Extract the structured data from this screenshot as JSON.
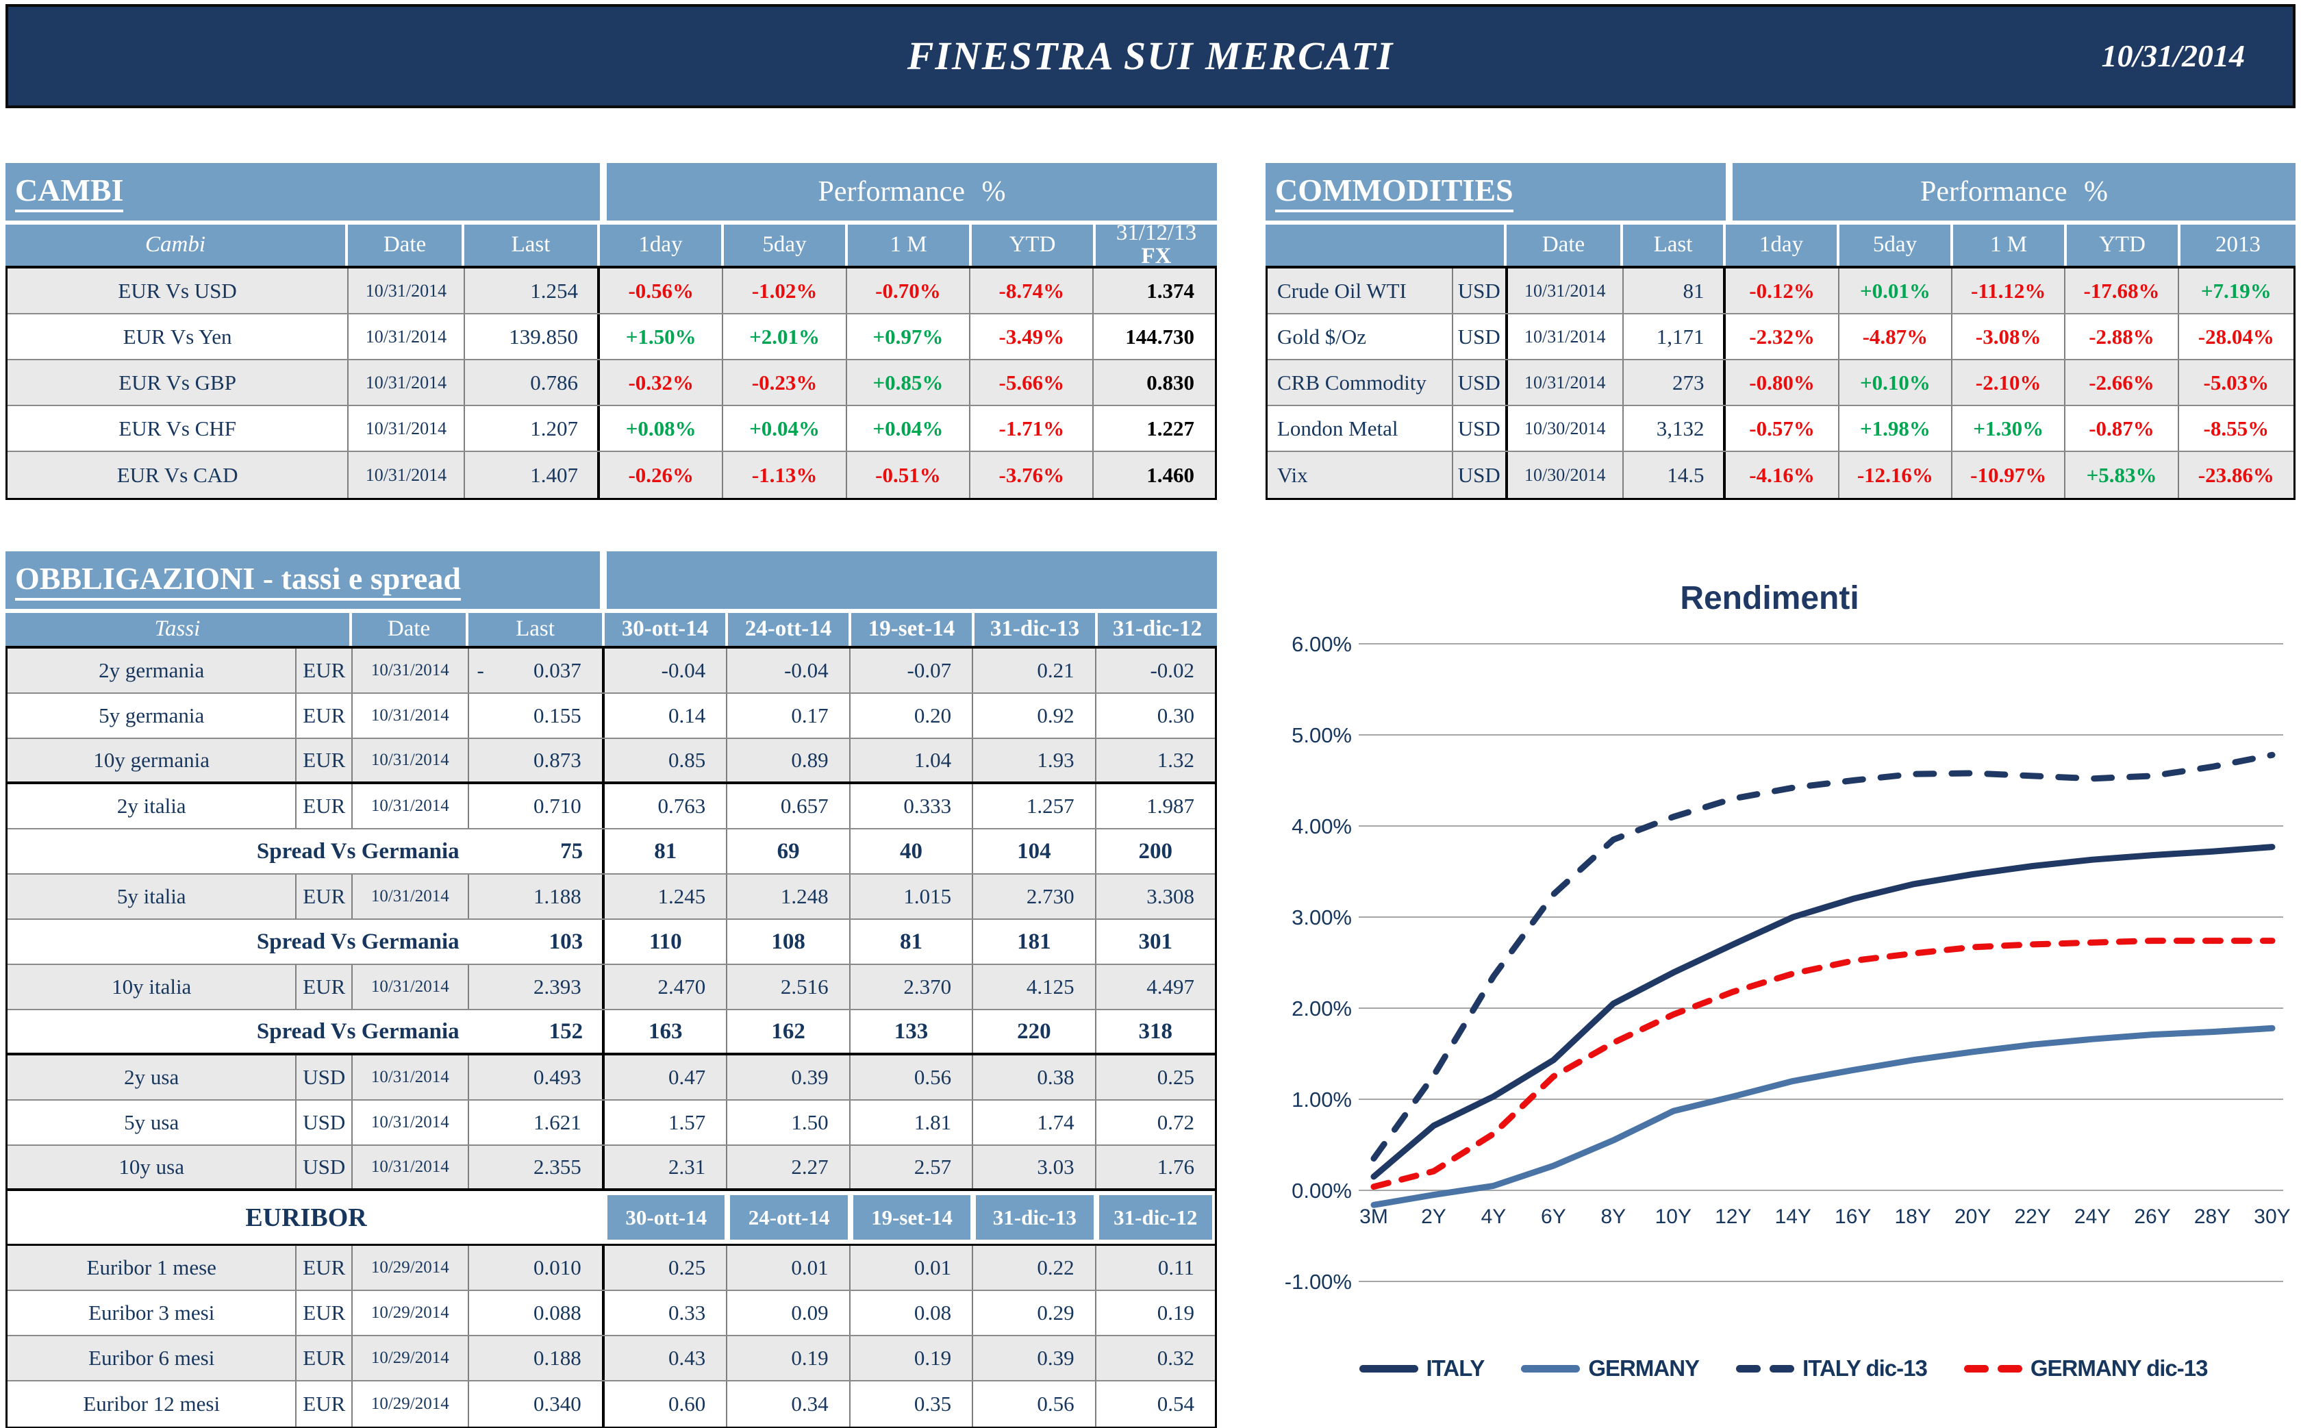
{
  "header": {
    "title": "FINESTRA SUI MERCATI",
    "date": "10/31/2014"
  },
  "palette": {
    "banner_navy": "#1e3a62",
    "table_header_blue": "#739fc5",
    "text_navy": "#17365d",
    "positive_green": "#00a651",
    "negative_red": "#e90d0d",
    "row_shade": "#e9e9e9",
    "grid_gray": "#a6a6a6",
    "ref_black": "#000000"
  },
  "cambi": {
    "title": "CAMBI",
    "perf_header": "Performance %",
    "columns": [
      "Cambi",
      "Date",
      "Last",
      "1day",
      "5day",
      "1 M",
      "YTD",
      "31/12/13",
      "FX"
    ],
    "rows": [
      {
        "name": "EUR Vs USD",
        "date": "10/31/2014",
        "last": "1.254",
        "perf": [
          "-0.56%",
          "-1.02%",
          "-0.70%",
          "-8.74%"
        ],
        "fx": "1.374",
        "shaded": true
      },
      {
        "name": "EUR Vs Yen",
        "date": "10/31/2014",
        "last": "139.850",
        "perf": [
          "+1.50%",
          "+2.01%",
          "+0.97%",
          "-3.49%"
        ],
        "fx": "144.730",
        "shaded": false
      },
      {
        "name": "EUR Vs GBP",
        "date": "10/31/2014",
        "last": "0.786",
        "perf": [
          "-0.32%",
          "-0.23%",
          "+0.85%",
          "-5.66%"
        ],
        "fx": "0.830",
        "shaded": true
      },
      {
        "name": "EUR Vs CHF",
        "date": "10/31/2014",
        "last": "1.207",
        "perf": [
          "+0.08%",
          "+0.04%",
          "+0.04%",
          "-1.71%"
        ],
        "fx": "1.227",
        "shaded": false
      },
      {
        "name": "EUR Vs CAD",
        "date": "10/31/2014",
        "last": "1.407",
        "perf": [
          "-0.26%",
          "-1.13%",
          "-0.51%",
          "-3.76%"
        ],
        "fx": "1.460",
        "shaded": true
      }
    ]
  },
  "commodities": {
    "title": "COMMODITIES",
    "perf_header": "Performance %",
    "columns": [
      "Date",
      "Last",
      "1day",
      "5day",
      "1 M",
      "YTD",
      "2013"
    ],
    "rows": [
      {
        "name": "Crude Oil WTI",
        "ccy": "USD",
        "date": "10/31/2014",
        "last": "81",
        "perf": [
          "-0.12%",
          "+0.01%",
          "-11.12%",
          "-17.68%",
          "+7.19%"
        ],
        "shaded": true
      },
      {
        "name": "Gold $/Oz",
        "ccy": "USD",
        "date": "10/31/2014",
        "last": "1,171",
        "perf": [
          "-2.32%",
          "-4.87%",
          "-3.08%",
          "-2.88%",
          "-28.04%"
        ],
        "shaded": false
      },
      {
        "name": "CRB Commodity",
        "ccy": "USD",
        "date": "10/31/2014",
        "last": "273",
        "perf": [
          "-0.80%",
          "+0.10%",
          "-2.10%",
          "-2.66%",
          "-5.03%"
        ],
        "shaded": true
      },
      {
        "name": "London Metal",
        "ccy": "USD",
        "date": "10/30/2014",
        "last": "3,132",
        "perf": [
          "-0.57%",
          "+1.98%",
          "+1.30%",
          "-0.87%",
          "-8.55%"
        ],
        "shaded": false
      },
      {
        "name": "Vix",
        "ccy": "USD",
        "date": "10/30/2014",
        "last": "14.5",
        "perf": [
          "-4.16%",
          "-12.16%",
          "-10.97%",
          "+5.83%",
          "-23.86%"
        ],
        "shaded": true
      }
    ]
  },
  "bonds": {
    "title": "OBBLIGAZIONI - tassi e spread",
    "header": [
      "Tassi",
      "Date",
      "Last",
      "30-ott-14",
      "24-ott-14",
      "19-set-14",
      "31-dic-13",
      "31-dic-12"
    ],
    "euribor_label": "EURIBOR",
    "euribor_columns": [
      "30-ott-14",
      "24-ott-14",
      "19-set-14",
      "31-dic-13",
      "31-dic-12"
    ],
    "rows": [
      {
        "type": "rate",
        "name": "2y germania",
        "ccy": "EUR",
        "date": "10/31/2014",
        "sign": "-",
        "last": "0.037",
        "vals": [
          "-0.04",
          "-0.04",
          "-0.07",
          "0.21",
          "-0.02"
        ],
        "shaded": true
      },
      {
        "type": "rate",
        "name": "5y germania",
        "ccy": "EUR",
        "date": "10/31/2014",
        "last": "0.155",
        "vals": [
          "0.14",
          "0.17",
          "0.20",
          "0.92",
          "0.30"
        ],
        "shaded": false
      },
      {
        "type": "rate",
        "name": "10y germania",
        "ccy": "EUR",
        "date": "10/31/2014",
        "last": "0.873",
        "vals": [
          "0.85",
          "0.89",
          "1.04",
          "1.93",
          "1.32"
        ],
        "shaded": true,
        "thick_bottom": true
      },
      {
        "type": "rate",
        "name": "2y italia",
        "ccy": "EUR",
        "date": "10/31/2014",
        "last": "0.710",
        "vals": [
          "0.763",
          "0.657",
          "0.333",
          "1.257",
          "1.987"
        ],
        "shaded": false
      },
      {
        "type": "spread",
        "label": "Spread Vs Germania",
        "last": "75",
        "vals": [
          "81",
          "69",
          "40",
          "104",
          "200"
        ],
        "shaded": false
      },
      {
        "type": "rate",
        "name": "5y italia",
        "ccy": "EUR",
        "date": "10/31/2014",
        "last": "1.188",
        "vals": [
          "1.245",
          "1.248",
          "1.015",
          "2.730",
          "3.308"
        ],
        "shaded": true
      },
      {
        "type": "spread",
        "label": "Spread Vs Germania",
        "last": "103",
        "vals": [
          "110",
          "108",
          "81",
          "181",
          "301"
        ],
        "shaded": false
      },
      {
        "type": "rate",
        "name": "10y italia",
        "ccy": "EUR",
        "date": "10/31/2014",
        "last": "2.393",
        "vals": [
          "2.470",
          "2.516",
          "2.370",
          "4.125",
          "4.497"
        ],
        "shaded": true
      },
      {
        "type": "spread",
        "label": "Spread Vs Germania",
        "last": "152",
        "vals": [
          "163",
          "162",
          "133",
          "220",
          "318"
        ],
        "shaded": false,
        "thick_bottom": true
      },
      {
        "type": "rate",
        "name": "2y usa",
        "ccy": "USD",
        "date": "10/31/2014",
        "last": "0.493",
        "vals": [
          "0.47",
          "0.39",
          "0.56",
          "0.38",
          "0.25"
        ],
        "shaded": true
      },
      {
        "type": "rate",
        "name": "5y usa",
        "ccy": "USD",
        "date": "10/31/2014",
        "last": "1.621",
        "vals": [
          "1.57",
          "1.50",
          "1.81",
          "1.74",
          "0.72"
        ],
        "shaded": false
      },
      {
        "type": "rate",
        "name": "10y usa",
        "ccy": "USD",
        "date": "10/31/2014",
        "last": "2.355",
        "vals": [
          "2.31",
          "2.27",
          "2.57",
          "3.03",
          "1.76"
        ],
        "shaded": true,
        "thick_bottom": true
      },
      {
        "type": "euribor_header"
      },
      {
        "type": "rate",
        "name": "Euribor 1 mese",
        "ccy": "EUR",
        "date": "10/29/2014",
        "last": "0.010",
        "vals": [
          "0.25",
          "0.01",
          "0.01",
          "0.22",
          "0.11"
        ],
        "shaded": true
      },
      {
        "type": "rate",
        "name": "Euribor 3 mesi",
        "ccy": "EUR",
        "date": "10/29/2014",
        "last": "0.088",
        "vals": [
          "0.33",
          "0.09",
          "0.08",
          "0.29",
          "0.19"
        ],
        "shaded": false
      },
      {
        "type": "rate",
        "name": "Euribor 6 mesi",
        "ccy": "EUR",
        "date": "10/29/2014",
        "last": "0.188",
        "vals": [
          "0.43",
          "0.19",
          "0.19",
          "0.39",
          "0.32"
        ],
        "shaded": true
      },
      {
        "type": "rate",
        "name": "Euribor 12 mesi",
        "ccy": "EUR",
        "date": "10/29/2014",
        "last": "0.340",
        "vals": [
          "0.60",
          "0.34",
          "0.35",
          "0.56",
          "0.54"
        ],
        "shaded": false
      }
    ]
  },
  "chart_data": {
    "type": "line",
    "title": "Rendimenti",
    "xlabel": "",
    "ylabel": "",
    "grid": true,
    "legend_position": "bottom",
    "ylim": [
      -1,
      6
    ],
    "y_tick_labels": [
      "6.00%",
      "5.00%",
      "4.00%",
      "3.00%",
      "2.00%",
      "1.00%",
      "0.00%",
      "-1.00%"
    ],
    "y_tick_values": [
      6,
      5,
      4,
      3,
      2,
      1,
      0,
      -1
    ],
    "x_categories": [
      "3M",
      "2Y",
      "4Y",
      "6Y",
      "8Y",
      "10Y",
      "12Y",
      "14Y",
      "16Y",
      "18Y",
      "20Y",
      "22Y",
      "24Y",
      "26Y",
      "28Y",
      "30Y"
    ],
    "series": [
      {
        "name": "ITALY",
        "style": "solid",
        "color": "#1f3864",
        "values": [
          0.15,
          0.71,
          1.03,
          1.43,
          2.05,
          2.39,
          2.7,
          3.0,
          3.2,
          3.36,
          3.47,
          3.56,
          3.63,
          3.68,
          3.72,
          3.77
        ]
      },
      {
        "name": "GERMANY",
        "style": "solid",
        "color": "#4a74a5",
        "values": [
          -0.16,
          -0.05,
          0.05,
          0.27,
          0.55,
          0.87,
          1.03,
          1.2,
          1.32,
          1.43,
          1.52,
          1.6,
          1.66,
          1.71,
          1.74,
          1.78
        ]
      },
      {
        "name": "ITALY dic-13",
        "style": "dashed",
        "color": "#1f3864",
        "values": [
          0.35,
          1.26,
          2.35,
          3.25,
          3.85,
          4.1,
          4.3,
          4.42,
          4.5,
          4.57,
          4.58,
          4.55,
          4.52,
          4.55,
          4.65,
          4.78
        ]
      },
      {
        "name": "GERMANY dic-13",
        "style": "dashed",
        "color": "#eb0e0e",
        "values": [
          0.04,
          0.21,
          0.62,
          1.25,
          1.62,
          1.93,
          2.18,
          2.38,
          2.52,
          2.6,
          2.67,
          2.7,
          2.72,
          2.74,
          2.74,
          2.74
        ]
      }
    ]
  }
}
